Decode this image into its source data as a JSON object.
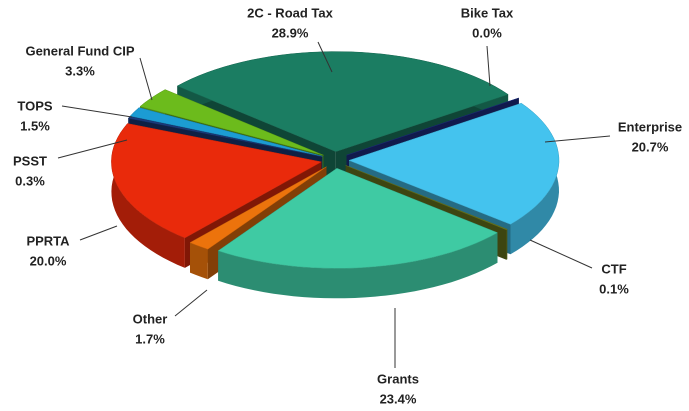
{
  "chart_data": {
    "type": "pie",
    "categories": [
      "2C - Road Tax",
      "Bike Tax",
      "Enterprise",
      "CTF",
      "Grants",
      "Other",
      "PPRTA",
      "PSST",
      "TOPS",
      "General Fund CIP"
    ],
    "values": [
      28.9,
      0.0,
      20.7,
      0.1,
      23.4,
      1.7,
      20.0,
      0.3,
      1.5,
      3.3
    ],
    "value_labels": [
      "28.9%",
      "0.0%",
      "20.7%",
      "0.1%",
      "23.4%",
      "1.7%",
      "20.0%",
      "0.3%",
      "1.5%",
      "3.3%"
    ],
    "colors": [
      "#1b7d62",
      "#1f2f8a",
      "#44c3ee",
      "#6f7d1f",
      "#3fcaa3",
      "#ec730c",
      "#e92a0b",
      "#1b3b7c",
      "#1c9cd3",
      "#6cbb1c"
    ]
  }
}
